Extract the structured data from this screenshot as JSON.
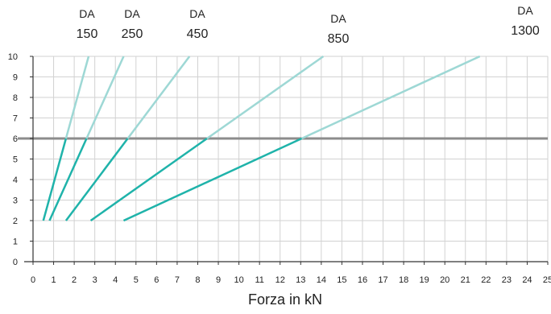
{
  "chart_data": {
    "type": "line",
    "xlabel": "Forza in kN",
    "ylabel": "",
    "xlim": [
      0,
      25
    ],
    "ylim": [
      0,
      10
    ],
    "x_ticks": [
      0,
      1,
      2,
      3,
      4,
      5,
      6,
      7,
      8,
      9,
      10,
      11,
      12,
      13,
      14,
      15,
      16,
      17,
      18,
      19,
      20,
      21,
      22,
      23,
      24,
      25
    ],
    "y_ticks": [
      0,
      1,
      2,
      3,
      4,
      5,
      6,
      7,
      8,
      9,
      10
    ],
    "grid": true,
    "reference_line": {
      "y": 6,
      "color": "#8c8c8c"
    },
    "colors": {
      "line_dark": "#1fb3aa",
      "line_light": "#9ed8d5",
      "grid": "#d2d2d2",
      "axis": "#333333"
    },
    "series": [
      {
        "name_line1": "DA",
        "name_line2": "150",
        "x": [
          0.5,
          2.7
        ],
        "y": [
          2,
          10
        ]
      },
      {
        "name_line1": "DA",
        "name_line2": "250",
        "x": [
          0.8,
          4.4
        ],
        "y": [
          2,
          10
        ]
      },
      {
        "name_line1": "DA",
        "name_line2": "450",
        "x": [
          1.6,
          7.6
        ],
        "y": [
          2,
          10
        ]
      },
      {
        "name_line1": "DA",
        "name_line2": "850",
        "x": [
          2.8,
          14.1
        ],
        "y": [
          2,
          10
        ]
      },
      {
        "name_line1": "DA",
        "name_line2": "1300",
        "x": [
          4.4,
          21.7
        ],
        "y": [
          2,
          10
        ]
      }
    ]
  }
}
